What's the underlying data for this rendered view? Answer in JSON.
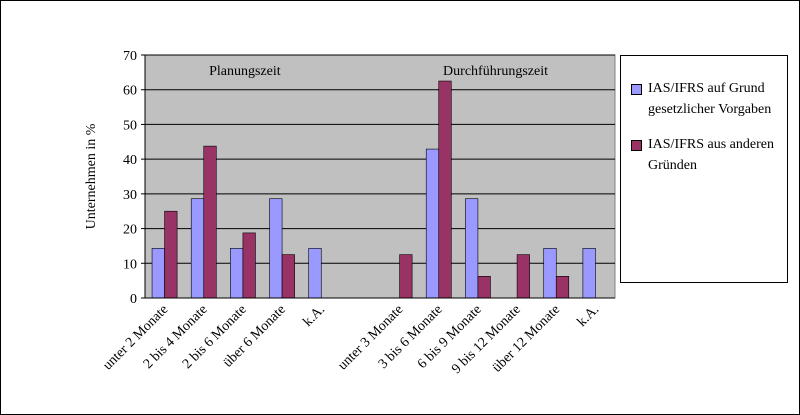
{
  "chart_data": {
    "type": "bar",
    "y_label": "Unternehmen in %",
    "annotations": [
      "Planungszeit",
      "Durchführungszeit"
    ],
    "categories": [
      "unter 2 Monate",
      "2 bis 4 Monate",
      "2 bis 6 Monate",
      "über 6 Monate",
      "k.A.",
      null,
      "unter 3 Monate",
      "3 bis 6 Monate",
      "6 bis 9 Monate",
      "9 bis 12 Monate",
      "über 12 Monate",
      "k.A."
    ],
    "series": [
      {
        "name": "IAS/IFRS auf Grund gesetzlicher Vorgaben",
        "color": "#9999ff",
        "values": [
          14.3,
          28.6,
          14.3,
          28.6,
          14.3,
          null,
          0,
          42.9,
          28.6,
          0,
          14.3,
          14.3
        ]
      },
      {
        "name": "IAS/IFRS aus anderen Gründen",
        "color": "#993366",
        "values": [
          25,
          43.75,
          18.75,
          12.5,
          0,
          null,
          12.5,
          62.5,
          6.25,
          12.5,
          6.25,
          0
        ]
      }
    ],
    "ylim": [
      0,
      70
    ],
    "yticks": [
      0,
      10,
      20,
      30,
      40,
      50,
      60,
      70
    ],
    "grid": true,
    "legend": "right"
  }
}
